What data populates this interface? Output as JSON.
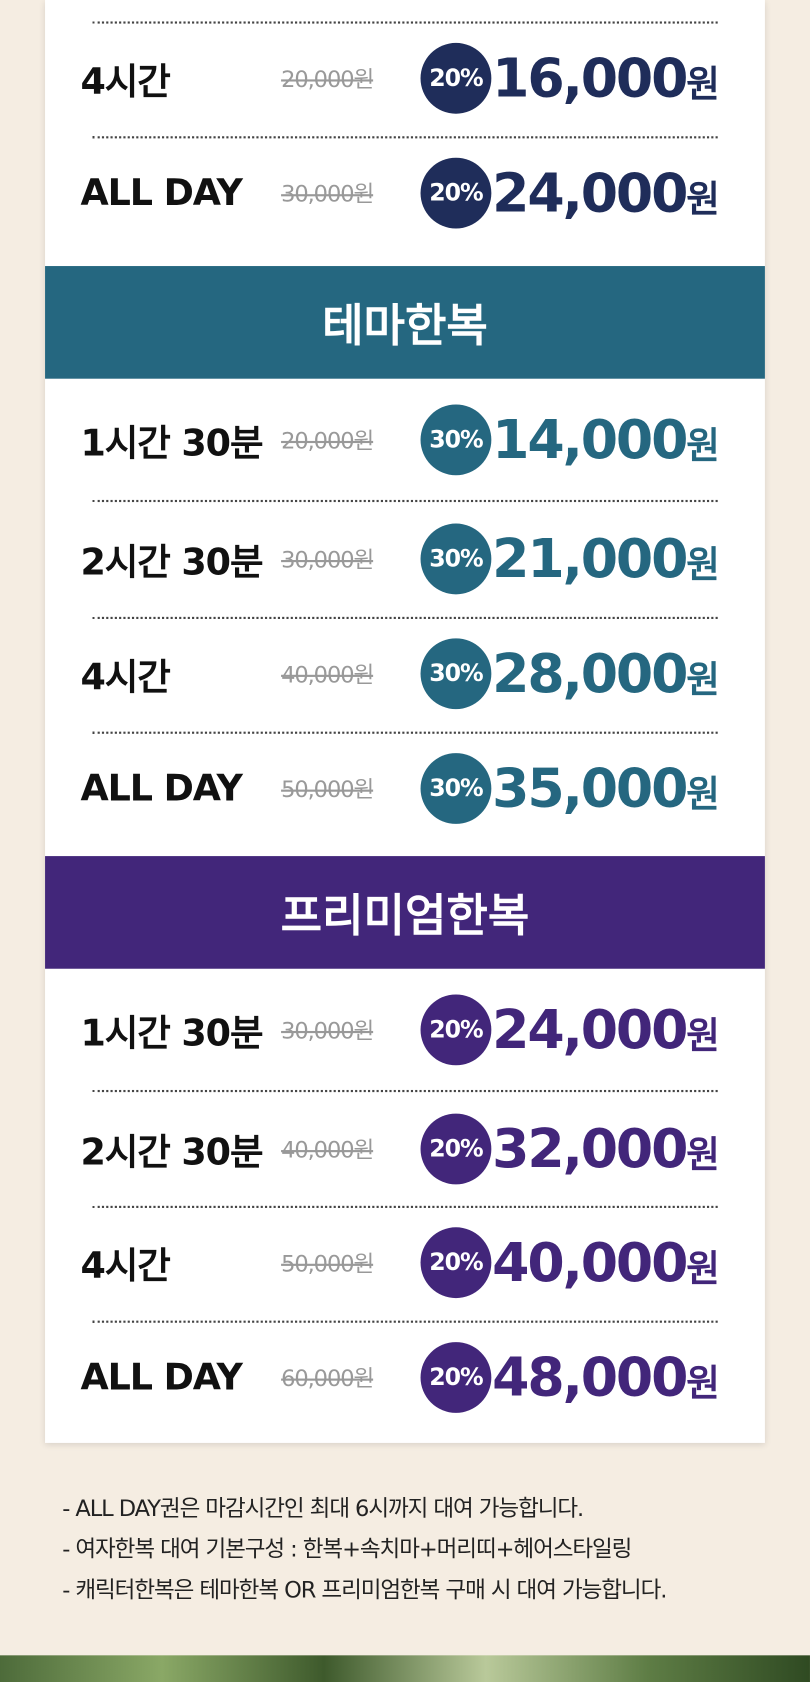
{
  "sections": [
    {
      "color": "#1f2d5a",
      "rows": [
        {
          "label": "4시간",
          "original": "20,000원",
          "discount": "20%",
          "price": "16,000",
          "unit": "원"
        },
        {
          "label": "ALL DAY",
          "original": "30,000원",
          "discount": "20%",
          "price": "24,000",
          "unit": "원"
        }
      ]
    },
    {
      "title": "테마한복",
      "color": "#256780",
      "rows": [
        {
          "label": "1시간 30분",
          "original": "20,000원",
          "discount": "30%",
          "price": "14,000",
          "unit": "원"
        },
        {
          "label": "2시간 30분",
          "original": "30,000원",
          "discount": "30%",
          "price": "21,000",
          "unit": "원"
        },
        {
          "label": "4시간",
          "original": "40,000원",
          "discount": "30%",
          "price": "28,000",
          "unit": "원"
        },
        {
          "label": "ALL DAY",
          "original": "50,000원",
          "discount": "30%",
          "price": "35,000",
          "unit": "원"
        }
      ]
    },
    {
      "title": "프리미엄한복",
      "color": "#42267a",
      "rows": [
        {
          "label": "1시간 30분",
          "original": "30,000원",
          "discount": "20%",
          "price": "24,000",
          "unit": "원"
        },
        {
          "label": "2시간 30분",
          "original": "40,000원",
          "discount": "20%",
          "price": "32,000",
          "unit": "원"
        },
        {
          "label": "4시간",
          "original": "50,000원",
          "discount": "20%",
          "price": "40,000",
          "unit": "원"
        },
        {
          "label": "ALL DAY",
          "original": "60,000원",
          "discount": "20%",
          "price": "48,000",
          "unit": "원"
        }
      ]
    }
  ],
  "notes": [
    "- ALL DAY권은 마감시간인 최대 6시까지 대여 가능합니다.",
    "- 여자한복 대여 기본구성 : 한복+속치마+머리띠+헤어스타일링",
    "- 캐릭터한복은 테마한복 OR 프리미엄한복 구매 시 대여 가능합니다."
  ]
}
